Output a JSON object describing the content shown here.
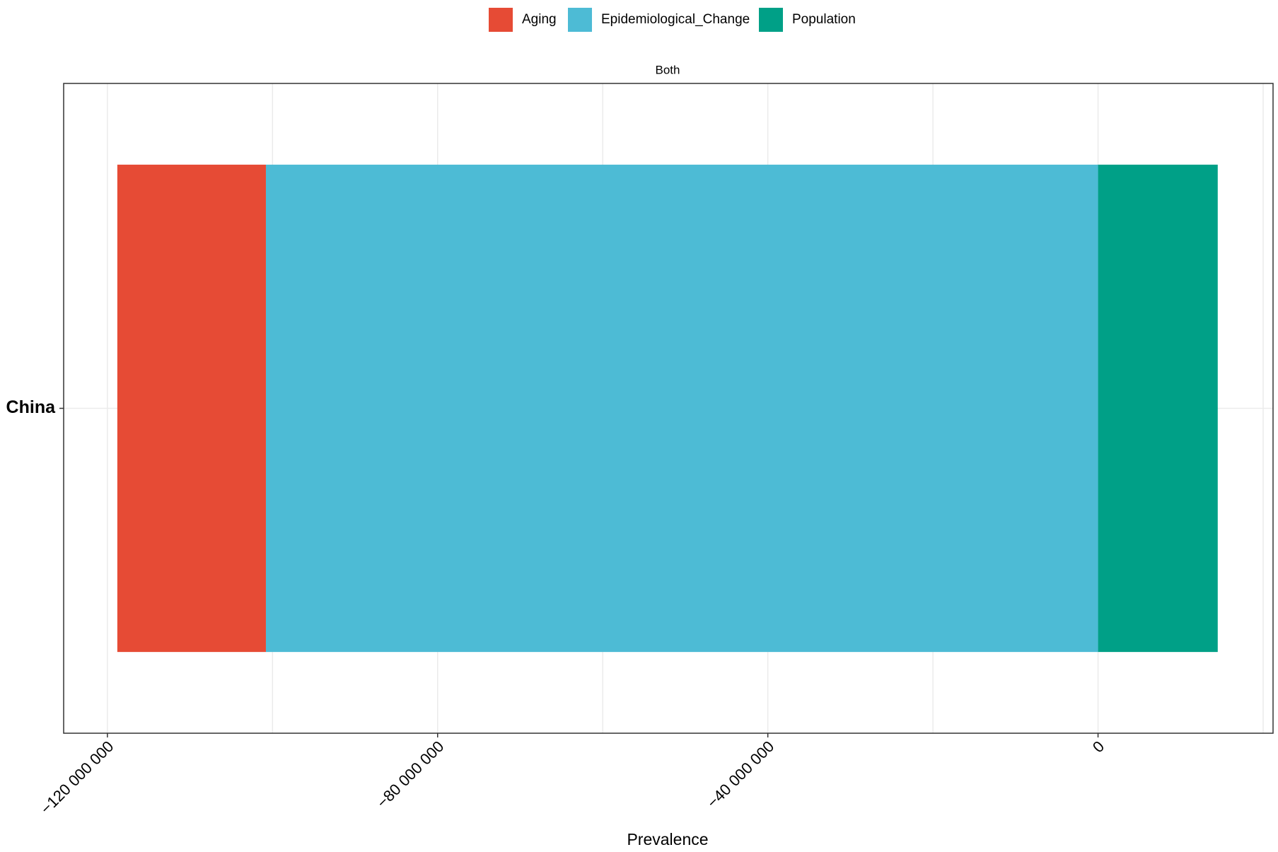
{
  "chart_data": {
    "type": "stacked_barh",
    "facet_label": "Both",
    "x_label": "Prevalence",
    "categories": [
      "China"
    ],
    "series": [
      {
        "name": "Aging",
        "color": "#E64B35",
        "values": [
          -18000000
        ]
      },
      {
        "name": "Epidemiological_Change",
        "color": "#4DBBD5",
        "values": [
          -100800000
        ]
      },
      {
        "name": "Population",
        "color": "#00A087",
        "values": [
          14500000
        ]
      }
    ],
    "xlim": [
      -125300000,
      21200000
    ],
    "xticks": [
      {
        "value": -120000000,
        "label": "−120 000 000"
      },
      {
        "value": -80000000,
        "label": "−80 000 000"
      },
      {
        "value": -40000000,
        "label": "−40 000 000"
      },
      0
    ],
    "xminorticks": [
      -100000000,
      -60000000,
      -20000000,
      20000000
    ],
    "grid": true,
    "legend": "top"
  }
}
